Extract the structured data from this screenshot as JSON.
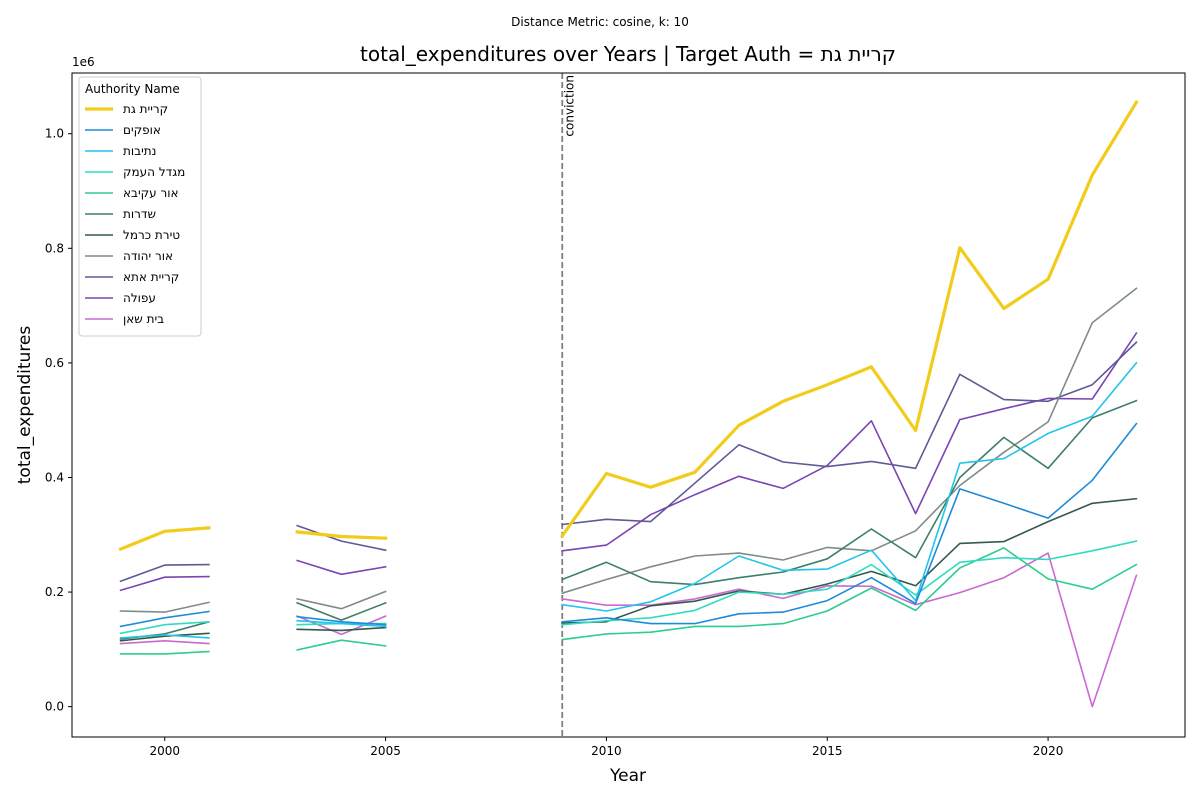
{
  "chart_data": {
    "type": "line",
    "suptitle": "Distance Metric: cosine, k: 10",
    "title": "total_expenditures over Years | Target Auth = קריית גת",
    "xlabel": "Year",
    "ylabel": "total_expenditures",
    "y_offset_label": "1e6",
    "xlim": [
      1997.9,
      2023.1
    ],
    "ylim": [
      -0.053,
      1.106
    ],
    "y_multiplier": 1000000,
    "xticks": [
      2000,
      2005,
      2010,
      2015,
      2020
    ],
    "yticks": [
      0.0,
      0.2,
      0.4,
      0.6,
      0.8,
      1.0
    ],
    "ytick_labels": [
      "0.0",
      "0.2",
      "0.4",
      "0.6",
      "0.8",
      "1.0"
    ],
    "grid": false,
    "legend": {
      "title": "Authority Name",
      "position": "top-left"
    },
    "vline": {
      "x": 2009,
      "label": "conviction",
      "style": "dashed",
      "color": "#7f7f7f"
    },
    "x": [
      1999,
      2000,
      2001,
      2002,
      2003,
      2004,
      2005,
      2006,
      2007,
      2008,
      2009,
      2010,
      2011,
      2012,
      2013,
      2014,
      2015,
      2016,
      2017,
      2018,
      2019,
      2020,
      2021,
      2022
    ],
    "series": [
      {
        "name": "קריית גת",
        "color": "#f2cc1b",
        "width": 3.2,
        "values": [
          0.275,
          0.306,
          0.312,
          null,
          0.305,
          0.297,
          0.294,
          null,
          null,
          null,
          0.298,
          0.407,
          0.383,
          0.409,
          0.491,
          0.533,
          0.562,
          0.593,
          0.482,
          0.801,
          0.695,
          0.746,
          0.928,
          1.055
        ]
      },
      {
        "name": "אופקים",
        "color": "#1f8ad8",
        "width": 1.6,
        "values": [
          0.14,
          0.155,
          0.166,
          null,
          0.157,
          0.148,
          0.143,
          null,
          null,
          null,
          0.148,
          0.155,
          0.145,
          0.145,
          0.162,
          0.165,
          0.185,
          0.225,
          0.18,
          0.38,
          0.355,
          0.329,
          0.395,
          0.494
        ]
      },
      {
        "name": "נתיבות",
        "color": "#22c4ea",
        "width": 1.6,
        "values": [
          0.12,
          0.125,
          0.12,
          null,
          0.15,
          0.145,
          0.14,
          null,
          null,
          null,
          0.178,
          0.167,
          0.183,
          0.215,
          0.263,
          0.238,
          0.24,
          0.273,
          0.185,
          0.425,
          0.433,
          0.477,
          0.507,
          0.6
        ]
      },
      {
        "name": "מגדל העמק",
        "color": "#2fdcc0",
        "width": 1.6,
        "values": [
          0.128,
          0.143,
          0.148,
          null,
          0.143,
          0.145,
          0.145,
          null,
          null,
          null,
          0.143,
          0.15,
          0.155,
          0.168,
          0.2,
          0.196,
          0.205,
          0.248,
          0.195,
          0.252,
          0.26,
          0.257,
          0.272,
          0.289
        ]
      },
      {
        "name": "אור עקיבא",
        "color": "#2ecc8f",
        "width": 1.6,
        "values": [
          0.092,
          0.092,
          0.096,
          null,
          0.099,
          0.116,
          0.106,
          null,
          null,
          null,
          0.117,
          0.127,
          0.13,
          0.14,
          0.14,
          0.145,
          0.167,
          0.207,
          0.168,
          0.242,
          0.277,
          0.223,
          0.205,
          0.248
        ]
      },
      {
        "name": "שדרות",
        "color": "#3d7f6a",
        "width": 1.6,
        "values": [
          0.118,
          0.127,
          0.148,
          null,
          0.181,
          0.151,
          0.181,
          null,
          null,
          null,
          0.222,
          0.252,
          0.218,
          0.213,
          0.225,
          0.235,
          0.258,
          0.31,
          0.26,
          0.4,
          0.47,
          0.416,
          0.504,
          0.534
        ]
      },
      {
        "name": "טירת כרמל",
        "color": "#335a4a",
        "width": 1.6,
        "values": [
          0.115,
          0.123,
          0.128,
          null,
          0.135,
          0.133,
          0.138,
          null,
          null,
          null,
          0.146,
          0.148,
          0.176,
          0.184,
          0.202,
          0.196,
          0.214,
          0.236,
          0.211,
          0.285,
          0.288,
          0.323,
          0.355,
          0.363
        ]
      },
      {
        "name": "אור יהודה",
        "color": "#7f8c87",
        "width": 1.6,
        "values": [
          0.167,
          0.165,
          0.182,
          null,
          0.188,
          0.171,
          0.201,
          null,
          null,
          null,
          0.198,
          0.222,
          0.244,
          0.263,
          0.268,
          0.256,
          0.278,
          0.272,
          0.307,
          0.386,
          0.444,
          0.497,
          0.67,
          0.73
        ]
      },
      {
        "name": "קריית אתא",
        "color": "#5e5a96",
        "width": 1.6,
        "values": [
          0.219,
          0.247,
          0.248,
          null,
          0.316,
          0.289,
          0.273,
          null,
          null,
          null,
          0.318,
          0.327,
          0.323,
          0.39,
          0.457,
          0.427,
          0.419,
          0.428,
          0.416,
          0.58,
          0.536,
          0.533,
          0.562,
          0.636
        ]
      },
      {
        "name": "עפולה",
        "color": "#7b45b5",
        "width": 1.6,
        "values": [
          0.203,
          0.226,
          0.227,
          null,
          0.255,
          0.231,
          0.244,
          null,
          null,
          null,
          0.272,
          0.282,
          0.335,
          0.37,
          0.402,
          0.381,
          0.421,
          0.499,
          0.337,
          0.501,
          0.52,
          0.538,
          0.537,
          0.652
        ]
      },
      {
        "name": "בית שאן",
        "color": "#c96ad0",
        "width": 1.6,
        "values": [
          0.11,
          0.115,
          0.11,
          null,
          0.158,
          0.126,
          0.158,
          null,
          null,
          null,
          0.188,
          0.177,
          0.177,
          0.188,
          0.205,
          0.189,
          0.211,
          0.21,
          0.178,
          0.199,
          0.225,
          0.268,
          0.0,
          0.229
        ]
      }
    ]
  }
}
